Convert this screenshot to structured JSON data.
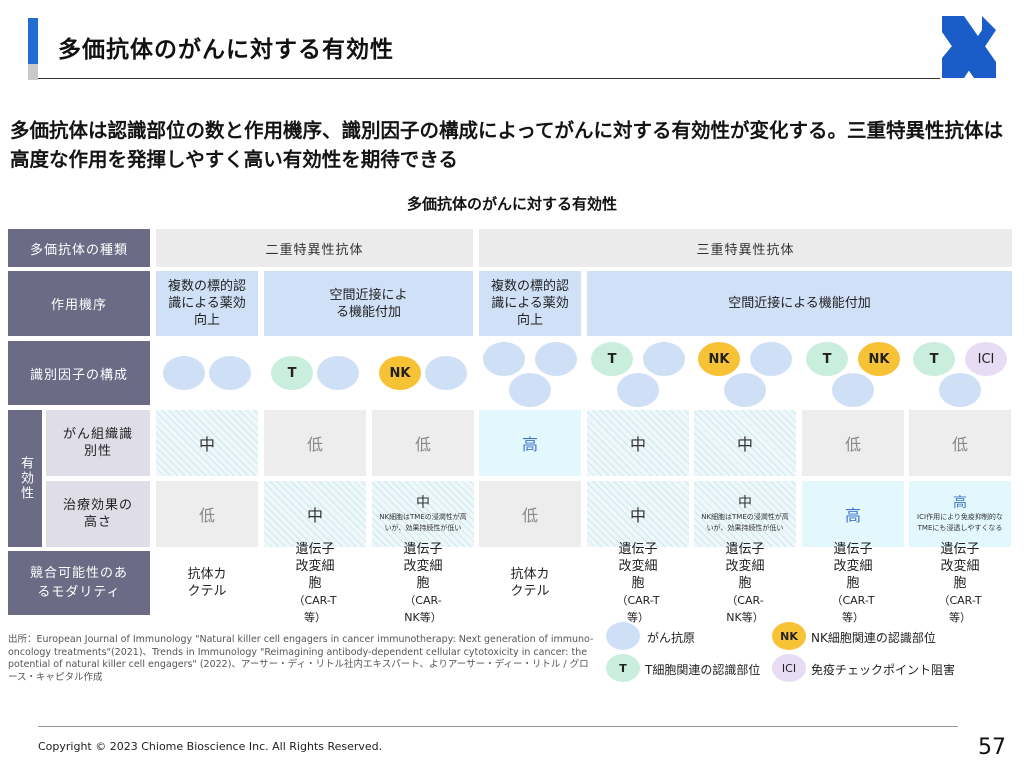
{
  "header": {
    "title": "多価抗体のがんに対する有効性",
    "logo_icon": "x-logo-icon"
  },
  "headline": "多価抗体は認識部位の数と作用機序、識別因子の構成によってがんに対する有効性が変化する。三重特異性抗体は高度な作用を発揮しやすく高い有効性を期待できる",
  "table": {
    "caption": "多価抗体のがんに対する有効性",
    "row_labels": {
      "type": "多価抗体の種類",
      "mechanism": "作用機序",
      "composition": "識別因子の構成",
      "efficacy": "有効性",
      "tumor_recognition": "がん組織識別性",
      "treatment_effect": "治療効果の高さ",
      "modality": "競合可能性のあるモダリティ"
    },
    "types": {
      "bispecific": "二重特異性抗体",
      "trispecific": "三重特異性抗体"
    },
    "mechanisms": {
      "multi_target": "複数の標的認識による薬効向上",
      "proximity": "空間近接による機能付加",
      "proximity_long": "空間近接による機能付加"
    },
    "factor_labels": {
      "t": "T",
      "nk": "NK",
      "ici": "ICI"
    },
    "recognition": [
      "中",
      "低",
      "低",
      "高",
      "中",
      "中",
      "低",
      "低"
    ],
    "effect": [
      "低",
      "中",
      "中",
      "低",
      "中",
      "中",
      "高",
      "高"
    ],
    "effect_notes": {
      "c3": "NK細胞はTMEの浸潤性が高いが、効果持続性が低い",
      "c6": "NK細胞はTMEの浸潤性が高いが、効果持続性が低い",
      "c8": "ICI作用により免疫抑制的なTMEにも浸透しやすくなる"
    },
    "modalities": [
      {
        "main": "抗体カクテル",
        "sub": ""
      },
      {
        "main": "遺伝子改変細胞",
        "sub": "（CAR-T等）"
      },
      {
        "main": "遺伝子改変細胞",
        "sub": "（CAR-NK等）"
      },
      {
        "main": "抗体カクテル",
        "sub": ""
      },
      {
        "main": "遺伝子改変細胞",
        "sub": "（CAR-T等）"
      },
      {
        "main": "遺伝子改変細胞",
        "sub": "（CAR-NK等）"
      },
      {
        "main": "遺伝子改変細胞",
        "sub": "（CAR-T等）"
      },
      {
        "main": "遺伝子改変細胞",
        "sub": "（CAR-T等）"
      }
    ]
  },
  "source": "出所：European Journal of Immunology \"Natural killer cell engagers in cancer immunotherapy: Next generation of immuno-oncology treatments\"(2021)、Trends in Immunology \"Reimagining antibody-dependent cellular cytotoxicity in cancer: the potential of natural killer cell engagers\" (2022)、アーサー・ディ・リトル社内エキスパート、よりアーサー・ディー・リトル / グロース・キャピタル作成",
  "legend": {
    "cancer_antigen": "がん抗原",
    "nk": "NK細胞関連の認識部位",
    "t": "T細胞関連の認識部位",
    "ici": "免疫チェックポイント阻害"
  },
  "colors": {
    "header_bar": "#1f6ed4",
    "row_header": "#6c6b86",
    "mechanism_bg": "#cfe0f7",
    "antigen": "#cfdff6",
    "t_cell": "#c9eedd",
    "nk_cell": "#f8c236",
    "ici": "#e8dcf5",
    "high_value": "#3f74c9"
  },
  "footer": {
    "copyright": "Copyright © 2023 Chiome Bioscience Inc. All Rights Reserved.",
    "page": "57"
  }
}
